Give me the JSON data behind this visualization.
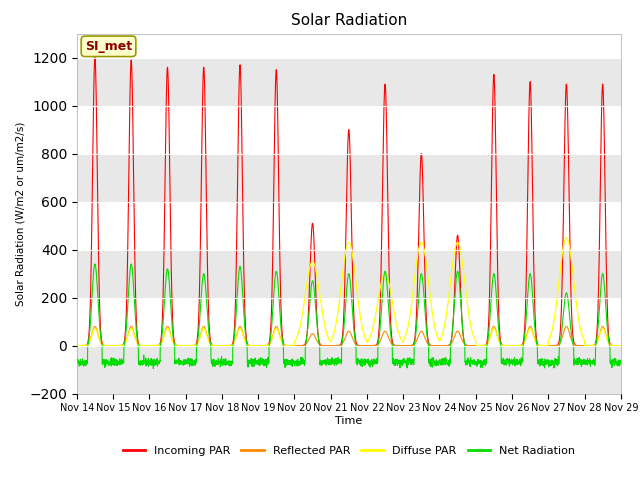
{
  "title": "Solar Radiation",
  "xlabel": "Time",
  "ylabel": "Solar Radiation (W/m2 or um/m2/s)",
  "ylim": [
    -200,
    1300
  ],
  "yticks": [
    -200,
    0,
    200,
    400,
    600,
    800,
    1000,
    1200
  ],
  "annotation": "SI_met",
  "fig_bg_color": "#ffffff",
  "plot_bg_color": "#ffffff",
  "colors": {
    "incoming": "#ff0000",
    "reflected": "#ff8800",
    "diffuse": "#ffff00",
    "net": "#00dd00"
  },
  "legend_labels": [
    "Incoming PAR",
    "Reflected PAR",
    "Diffuse PAR",
    "Net Radiation"
  ],
  "incoming_peaks": [
    1200,
    1190,
    1160,
    1160,
    1170,
    1150,
    510,
    900,
    1090,
    800,
    460,
    1130,
    1100,
    1090,
    1090
  ],
  "net_peaks": [
    340,
    340,
    320,
    300,
    330,
    310,
    270,
    300,
    310,
    300,
    310,
    300,
    300,
    220,
    300
  ],
  "reflected_peaks": [
    80,
    80,
    80,
    80,
    80,
    80,
    50,
    60,
    60,
    60,
    60,
    80,
    80,
    80,
    80
  ],
  "diffuse_peaks": [
    80,
    80,
    80,
    80,
    80,
    80,
    350,
    430,
    300,
    430,
    430,
    300,
    300,
    450,
    300
  ],
  "cloudy_days": [
    6,
    7,
    8,
    9,
    10,
    13
  ]
}
